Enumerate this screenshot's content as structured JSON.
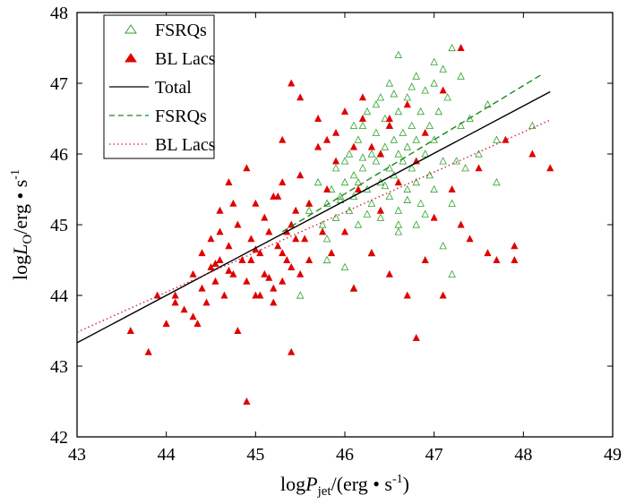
{
  "chart_data": {
    "type": "scatter",
    "x_label": {
      "prefix": "log",
      "var": "P",
      "sub": "jet",
      "unit": "/(erg • s",
      "exp": "-1",
      "suffix": ")"
    },
    "y_label": {
      "prefix": "log",
      "var": "L",
      "sub": "O",
      "unit": "/erg • s",
      "exp": "-1"
    },
    "xlim": [
      43,
      49
    ],
    "ylim": [
      42,
      48
    ],
    "x_ticks": [
      "43",
      "44",
      "45",
      "46",
      "47",
      "48",
      "49"
    ],
    "y_ticks": [
      "42",
      "43",
      "44",
      "45",
      "46",
      "47",
      "48"
    ],
    "legend": {
      "position": "top-left",
      "entries": [
        {
          "label": "FSRQs",
          "kind": "open-triangle",
          "color": "#2ca02c"
        },
        {
          "label": "BL Lacs",
          "kind": "filled-triangle",
          "color": "#e00000"
        },
        {
          "label": "Total",
          "kind": "solid-line",
          "color": "#000000"
        },
        {
          "label": "FSRQs",
          "kind": "dashed-line",
          "color": "#1a8a1a"
        },
        {
          "label": "BL Lacs",
          "kind": "dotted-line",
          "color": "#d02040"
        }
      ]
    },
    "fit_lines": [
      {
        "name": "Total",
        "style": "solid",
        "color": "#000000",
        "x": [
          43.0,
          48.3
        ],
        "y": [
          43.33,
          46.88
        ]
      },
      {
        "name": "FSRQs",
        "style": "dashed",
        "color": "#1a8a1a",
        "x": [
          45.3,
          48.2
        ],
        "y": [
          44.9,
          47.12
        ]
      },
      {
        "name": "BL Lacs",
        "style": "dotted",
        "color": "#d02040",
        "x": [
          43.0,
          48.3
        ],
        "y": [
          43.48,
          46.48
        ]
      }
    ],
    "series": [
      {
        "name": "FSRQs",
        "marker": "open-triangle",
        "color": "#2ca02c",
        "points": [
          [
            45.6,
            45.2
          ],
          [
            45.7,
            45.6
          ],
          [
            45.75,
            45.0
          ],
          [
            45.8,
            45.3
          ],
          [
            45.85,
            45.5
          ],
          [
            45.9,
            45.8
          ],
          [
            45.9,
            45.1
          ],
          [
            45.95,
            45.4
          ],
          [
            46.0,
            45.6
          ],
          [
            46.0,
            45.9
          ],
          [
            46.05,
            45.2
          ],
          [
            46.05,
            46.0
          ],
          [
            46.1,
            45.7
          ],
          [
            46.1,
            45.4
          ],
          [
            46.15,
            46.2
          ],
          [
            46.15,
            45.0
          ],
          [
            46.2,
            45.8
          ],
          [
            46.2,
            46.4
          ],
          [
            46.25,
            45.5
          ],
          [
            46.25,
            46.6
          ],
          [
            46.3,
            46.0
          ],
          [
            46.3,
            45.3
          ],
          [
            46.35,
            46.3
          ],
          [
            46.35,
            45.9
          ],
          [
            46.4,
            46.8
          ],
          [
            46.4,
            45.6
          ],
          [
            46.4,
            45.1
          ],
          [
            46.45,
            46.5
          ],
          [
            46.45,
            46.1
          ],
          [
            46.5,
            45.8
          ],
          [
            46.5,
            46.4
          ],
          [
            46.5,
            45.4
          ],
          [
            46.5,
            47.0
          ],
          [
            46.55,
            46.2
          ],
          [
            46.55,
            45.7
          ],
          [
            46.6,
            46.6
          ],
          [
            46.6,
            46.0
          ],
          [
            46.6,
            45.2
          ],
          [
            46.65,
            46.3
          ],
          [
            46.65,
            45.9
          ],
          [
            46.7,
            46.8
          ],
          [
            46.7,
            46.1
          ],
          [
            46.7,
            45.5
          ],
          [
            46.75,
            46.4
          ],
          [
            46.75,
            45.8
          ],
          [
            46.8,
            47.1
          ],
          [
            46.8,
            46.2
          ],
          [
            46.8,
            45.6
          ],
          [
            46.85,
            46.6
          ],
          [
            46.85,
            45.3
          ],
          [
            46.9,
            46.0
          ],
          [
            46.9,
            46.9
          ],
          [
            46.95,
            46.4
          ],
          [
            46.95,
            45.7
          ],
          [
            47.0,
            47.0
          ],
          [
            47.0,
            46.2
          ],
          [
            47.05,
            46.6
          ],
          [
            47.1,
            47.2
          ],
          [
            47.1,
            45.9
          ],
          [
            47.15,
            46.8
          ],
          [
            47.2,
            45.3
          ],
          [
            47.2,
            47.5
          ],
          [
            47.3,
            47.1
          ],
          [
            47.3,
            46.4
          ],
          [
            47.35,
            45.8
          ],
          [
            47.4,
            46.5
          ],
          [
            47.5,
            46.0
          ],
          [
            47.6,
            46.7
          ],
          [
            47.7,
            45.6
          ],
          [
            47.7,
            46.2
          ],
          [
            47.2,
            44.3
          ],
          [
            46.0,
            44.4
          ],
          [
            46.3,
            44.6
          ],
          [
            46.6,
            44.9
          ],
          [
            46.8,
            45.0
          ],
          [
            45.5,
            44.0
          ],
          [
            45.8,
            44.8
          ],
          [
            46.1,
            46.4
          ],
          [
            46.4,
            46.0
          ],
          [
            46.6,
            45.0
          ],
          [
            46.2,
            45.95
          ],
          [
            46.45,
            45.55
          ],
          [
            46.7,
            45.35
          ],
          [
            46.9,
            45.15
          ],
          [
            45.95,
            45.35
          ],
          [
            46.25,
            45.15
          ],
          [
            46.55,
            46.85
          ],
          [
            46.35,
            46.7
          ],
          [
            46.15,
            45.6
          ],
          [
            46.75,
            46.95
          ],
          [
            47.0,
            45.5
          ],
          [
            47.25,
            45.9
          ],
          [
            46.6,
            47.4
          ],
          [
            47.0,
            47.3
          ],
          [
            48.1,
            46.4
          ],
          [
            45.8,
            44.5
          ],
          [
            46.1,
            44.1
          ],
          [
            47.1,
            44.7
          ]
        ]
      },
      {
        "name": "BL Lacs",
        "marker": "filled-triangle",
        "color": "#e00000",
        "points": [
          [
            43.6,
            43.5
          ],
          [
            43.8,
            43.2
          ],
          [
            44.0,
            43.6
          ],
          [
            44.1,
            44.0
          ],
          [
            44.2,
            43.8
          ],
          [
            44.3,
            43.7
          ],
          [
            44.3,
            44.3
          ],
          [
            44.35,
            43.6
          ],
          [
            44.4,
            44.1
          ],
          [
            44.4,
            44.6
          ],
          [
            44.45,
            43.9
          ],
          [
            44.5,
            44.4
          ],
          [
            44.5,
            44.8
          ],
          [
            44.55,
            44.2
          ],
          [
            44.6,
            45.2
          ],
          [
            44.6,
            44.5
          ],
          [
            44.65,
            44.0
          ],
          [
            44.7,
            44.7
          ],
          [
            44.7,
            45.6
          ],
          [
            44.75,
            44.3
          ],
          [
            44.8,
            45.0
          ],
          [
            44.8,
            43.5
          ],
          [
            44.85,
            44.5
          ],
          [
            44.9,
            45.8
          ],
          [
            44.9,
            44.2
          ],
          [
            44.95,
            44.8
          ],
          [
            45.0,
            45.3
          ],
          [
            45.0,
            44.0
          ],
          [
            45.05,
            44.6
          ],
          [
            45.1,
            45.1
          ],
          [
            45.1,
            44.3
          ],
          [
            45.15,
            44.9
          ],
          [
            45.2,
            45.4
          ],
          [
            45.2,
            44.1
          ],
          [
            45.25,
            44.7
          ],
          [
            45.3,
            45.6
          ],
          [
            45.3,
            44.2
          ],
          [
            45.35,
            44.5
          ],
          [
            45.4,
            45.0
          ],
          [
            45.4,
            44.4
          ],
          [
            45.45,
            45.2
          ],
          [
            45.5,
            44.3
          ],
          [
            45.5,
            45.7
          ],
          [
            45.55,
            44.8
          ],
          [
            45.6,
            44.5
          ],
          [
            45.6,
            45.3
          ],
          [
            45.7,
            46.1
          ],
          [
            45.75,
            44.9
          ],
          [
            45.8,
            45.5
          ],
          [
            45.85,
            44.6
          ],
          [
            45.9,
            46.3
          ],
          [
            46.0,
            44.9
          ],
          [
            46.0,
            46.6
          ],
          [
            46.1,
            44.1
          ],
          [
            46.15,
            45.5
          ],
          [
            46.2,
            46.8
          ],
          [
            46.3,
            44.6
          ],
          [
            46.3,
            46.1
          ],
          [
            46.4,
            45.2
          ],
          [
            46.5,
            44.3
          ],
          [
            46.5,
            46.5
          ],
          [
            46.6,
            45.6
          ],
          [
            46.7,
            44.0
          ],
          [
            46.8,
            43.4
          ],
          [
            46.8,
            45.9
          ],
          [
            46.9,
            44.5
          ],
          [
            47.0,
            45.1
          ],
          [
            47.1,
            44.0
          ],
          [
            47.2,
            45.5
          ],
          [
            47.3,
            47.5
          ],
          [
            47.3,
            45.0
          ],
          [
            47.4,
            44.8
          ],
          [
            47.5,
            45.8
          ],
          [
            47.6,
            44.6
          ],
          [
            47.7,
            44.5
          ],
          [
            47.8,
            46.2
          ],
          [
            47.9,
            44.7
          ],
          [
            47.9,
            44.5
          ],
          [
            48.1,
            46.0
          ],
          [
            48.3,
            45.8
          ],
          [
            45.3,
            46.2
          ],
          [
            45.4,
            47.0
          ],
          [
            45.5,
            46.8
          ],
          [
            45.7,
            46.5
          ],
          [
            45.8,
            46.2
          ],
          [
            46.2,
            46.5
          ],
          [
            46.5,
            46.4
          ],
          [
            46.7,
            46.7
          ],
          [
            45.4,
            43.2
          ],
          [
            44.9,
            42.5
          ],
          [
            43.9,
            44.0
          ],
          [
            44.1,
            43.9
          ],
          [
            44.6,
            44.9
          ],
          [
            44.75,
            45.3
          ],
          [
            45.05,
            44.0
          ],
          [
            45.25,
            45.4
          ],
          [
            45.45,
            44.8
          ],
          [
            45.6,
            45.3
          ],
          [
            45.9,
            45.9
          ],
          [
            46.1,
            46.1
          ],
          [
            46.4,
            46.0
          ],
          [
            46.9,
            46.3
          ],
          [
            47.1,
            46.9
          ],
          [
            45.2,
            43.9
          ],
          [
            44.55,
            44.45
          ],
          [
            44.7,
            44.35
          ],
          [
            45.3,
            44.6
          ],
          [
            45.35,
            44.9
          ],
          [
            45.15,
            44.25
          ],
          [
            44.95,
            44.5
          ],
          [
            45.0,
            44.65
          ]
        ]
      }
    ]
  }
}
